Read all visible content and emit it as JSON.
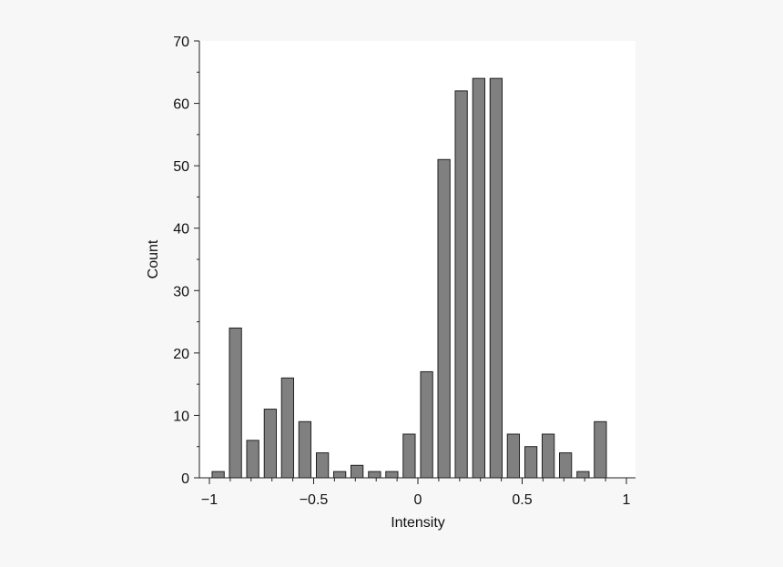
{
  "chart_data": {
    "type": "bar",
    "title": "",
    "xlabel": "Intensity",
    "ylabel": "Count",
    "xlim": [
      -1.05,
      1.05
    ],
    "ylim": [
      0,
      70
    ],
    "grid": false,
    "x_ticks": [
      {
        "value": -1,
        "label": "−1"
      },
      {
        "value": -0.5,
        "label": "−0.5"
      },
      {
        "value": 0,
        "label": "0"
      },
      {
        "value": 0.5,
        "label": "0.5"
      },
      {
        "value": 1,
        "label": "1"
      }
    ],
    "y_ticks": [
      {
        "value": 0,
        "label": "0"
      },
      {
        "value": 10,
        "label": "10"
      },
      {
        "value": 20,
        "label": "20"
      },
      {
        "value": 30,
        "label": "30"
      },
      {
        "value": 40,
        "label": "40"
      },
      {
        "value": 50,
        "label": "50"
      },
      {
        "value": 60,
        "label": "60"
      },
      {
        "value": 70,
        "label": "70"
      }
    ],
    "x_minor_step": 0.1,
    "y_minor_step": 5,
    "bar_width": 0.058,
    "x": [
      -0.958,
      -0.875,
      -0.792,
      -0.708,
      -0.625,
      -0.542,
      -0.458,
      -0.375,
      -0.292,
      -0.208,
      -0.125,
      -0.042,
      0.042,
      0.125,
      0.208,
      0.292,
      0.375,
      0.458,
      0.542,
      0.625,
      0.708,
      0.792,
      0.875,
      0.958
    ],
    "values": [
      1,
      24,
      6,
      11,
      16,
      9,
      4,
      1,
      2,
      1,
      1,
      7,
      17,
      51,
      62,
      64,
      64,
      7,
      5,
      7,
      4,
      1,
      9,
      0
    ],
    "bar_color": "#808080",
    "bar_edge_color": "#222222",
    "plot_background": "#ffffff"
  }
}
